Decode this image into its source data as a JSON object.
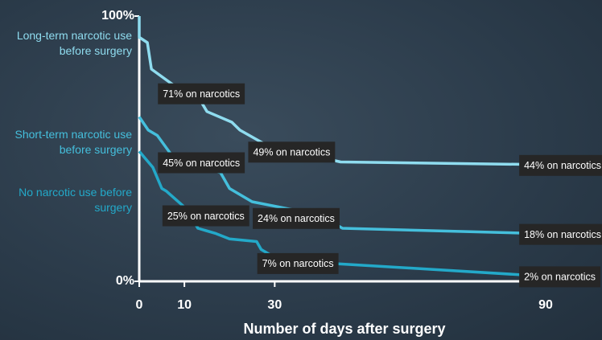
{
  "chart_data": {
    "type": "line",
    "x_label": "Number of days after surgery",
    "xlim": [
      0,
      90
    ],
    "xticks": [
      0,
      10,
      30,
      90
    ],
    "ylim": [
      0,
      100
    ],
    "yticks": [
      {
        "value": 0,
        "label": "0%"
      },
      {
        "value": 100,
        "label": "100%"
      }
    ],
    "series": [
      {
        "name": "Long-term narcotic use before surgery",
        "color": "#8fdcef",
        "x": [
          0,
          0,
          1.8,
          2.7,
          10,
          13.6,
          15,
          20.5,
          22.3,
          29.6,
          36.7,
          44.6,
          89
        ],
        "values": [
          100,
          92,
          90,
          80,
          71,
          68,
          64,
          60,
          57,
          50,
          48,
          45,
          44
        ],
        "annotations": [
          {
            "x": 2,
            "value": 71,
            "label": "71% on narcotics"
          },
          {
            "x": 22,
            "value": 49,
            "label": "49% on narcotics"
          },
          {
            "x": 82,
            "value": 44,
            "label": "44% on narcotics"
          }
        ]
      },
      {
        "name": "Short-term narcotic use before surgery",
        "color": "#45bfdc",
        "x": [
          0,
          2,
          4,
          7,
          10,
          18,
          20,
          25,
          40,
          45,
          89
        ],
        "values": [
          62,
          57,
          55,
          48,
          44,
          41,
          35,
          30,
          25,
          20,
          18
        ],
        "annotations": [
          {
            "x": 2,
            "value": 45,
            "label": "45% on narcotics"
          },
          {
            "x": 23,
            "value": 24,
            "label": "24% on narcotics"
          },
          {
            "x": 82,
            "value": 18,
            "label": "18% on narcotics"
          }
        ]
      },
      {
        "name": "No narcotic use before surgery",
        "color": "#23a9c9",
        "x": [
          0,
          3,
          5,
          6,
          10,
          13,
          17,
          20,
          26,
          27,
          30,
          40,
          60,
          89
        ],
        "values": [
          49,
          43,
          35,
          34,
          28,
          20,
          18,
          16,
          15,
          12,
          9,
          7,
          5,
          2
        ],
        "annotations": [
          {
            "x": 3,
            "value": 25,
            "label": "25% on narcotics"
          },
          {
            "x": 24,
            "value": 7,
            "label": "7% on narcotics"
          },
          {
            "x": 82,
            "value": 2,
            "label": "2% on narcotics"
          }
        ]
      }
    ]
  }
}
